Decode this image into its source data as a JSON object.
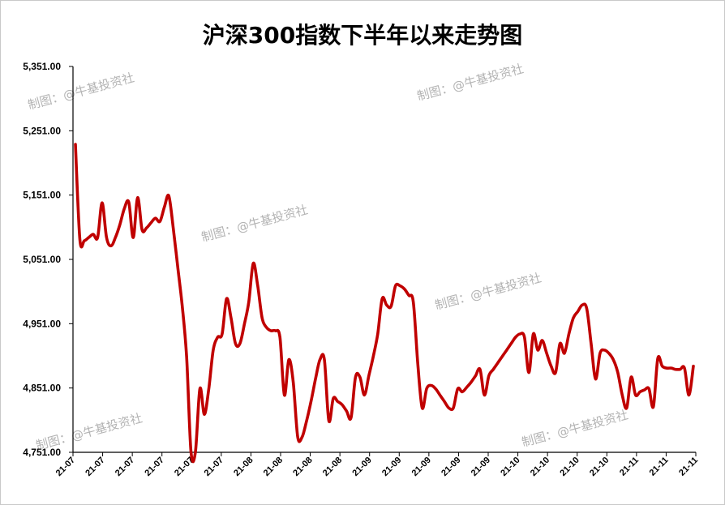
{
  "chart_data": {
    "type": "line",
    "title": "沪深300指数下半年以来走势图",
    "xlabel": "",
    "ylabel": "",
    "ylim": [
      4751,
      5351
    ],
    "yticks": [
      "5,351.00",
      "5,251.00",
      "5,151.00",
      "5,051.00",
      "4,951.00",
      "4,851.00",
      "4,751.00"
    ],
    "xticks": [
      "21-07",
      "21-07",
      "21-07",
      "21-07",
      "21-07",
      "21-07",
      "21-08",
      "21-08",
      "21-08",
      "21-08",
      "21-09",
      "21-09",
      "21-09",
      "21-09",
      "21-09",
      "21-10",
      "21-10",
      "21-10",
      "21-10",
      "21-11",
      "21-11",
      "21-11"
    ],
    "grid": false,
    "legend": "none",
    "series": [
      {
        "color": "#c00000",
        "values": [
          5230,
          5082,
          5080,
          5085,
          5090,
          5085,
          5139,
          5085,
          5072,
          5085,
          5105,
          5130,
          5140,
          5085,
          5147,
          5097,
          5100,
          5108,
          5115,
          5110,
          5132,
          5150,
          5100,
          5040,
          4980,
          4900,
          4752,
          4752,
          4850,
          4810,
          4850,
          4910,
          4930,
          4935,
          4990,
          4960,
          4920,
          4920,
          4950,
          4985,
          5045,
          5010,
          4960,
          4945,
          4940,
          4940,
          4930,
          4840,
          4895,
          4860,
          4775,
          4775,
          4800,
          4830,
          4865,
          4895,
          4895,
          4800,
          4835,
          4830,
          4825,
          4815,
          4805,
          4868,
          4868,
          4840,
          4870,
          4900,
          4935,
          4990,
          4980,
          4978,
          5010,
          5010,
          5005,
          4995,
          4985,
          4890,
          4820,
          4850,
          4855,
          4850,
          4840,
          4830,
          4820,
          4820,
          4850,
          4845,
          4852,
          4860,
          4870,
          4880,
          4840,
          4870,
          4880,
          4890,
          4900,
          4910,
          4920,
          4930,
          4935,
          4930,
          4875,
          4935,
          4910,
          4925,
          4905,
          4885,
          4875,
          4920,
          4905,
          4935,
          4960,
          4970,
          4980,
          4975,
          4920,
          4865,
          4905,
          4910,
          4905,
          4895,
          4875,
          4840,
          4820,
          4868,
          4840,
          4845,
          4848,
          4850,
          4822,
          4897,
          4885,
          4882,
          4882,
          4880,
          4880,
          4882,
          4840,
          4885
        ]
      }
    ]
  },
  "watermarks": [
    "制图：@牛基投资社",
    "制图：@牛基投资社",
    "制图：@牛基投资社",
    "制图：@牛基投资社",
    "制图：@牛基投资社",
    "制图：@牛基投资社"
  ]
}
